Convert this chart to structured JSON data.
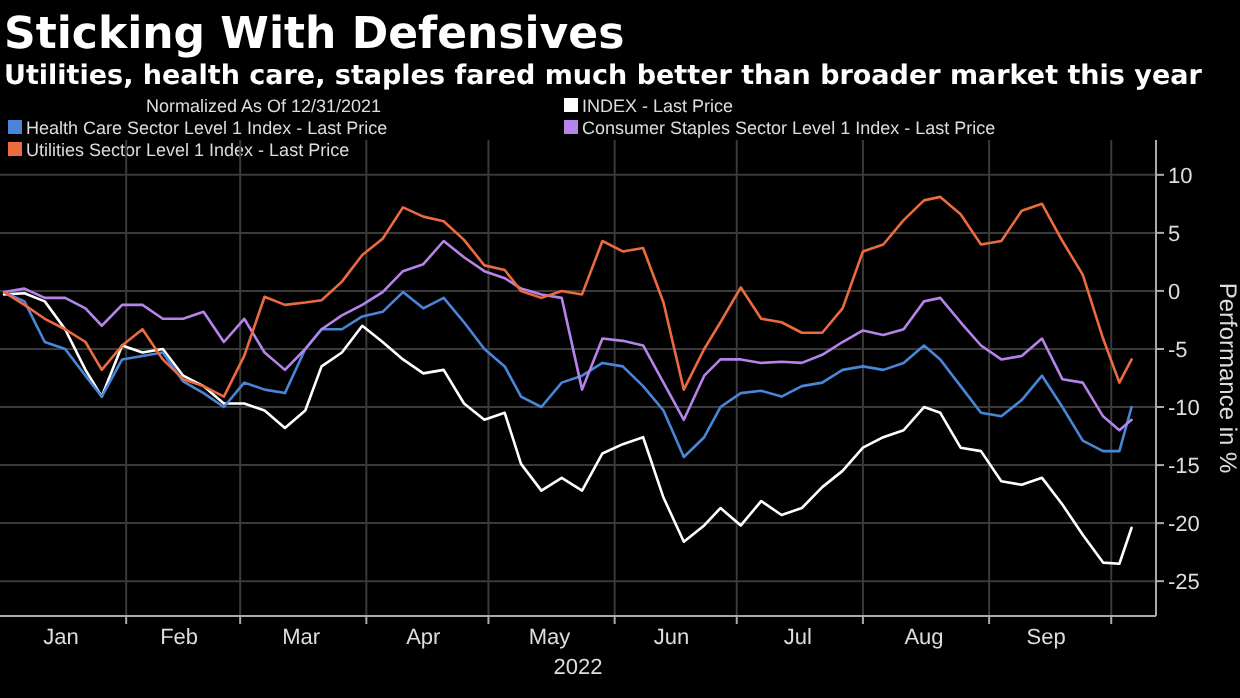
{
  "chart_data": {
    "type": "line",
    "title": "Sticking With Defensives",
    "subtitle": "Utilities, health care, staples fared much better than broader market this year",
    "legend_title": "Normalized As Of 12/31/2021",
    "xlabel": "2022",
    "ylabel": "Performance in %",
    "x": [
      "2022-01-02",
      "2022-01-07",
      "2022-01-12",
      "2022-01-17",
      "2022-01-22",
      "2022-01-26",
      "2022-01-31",
      "2022-02-05",
      "2022-02-10",
      "2022-02-15",
      "2022-02-20",
      "2022-02-25",
      "2022-03-02",
      "2022-03-07",
      "2022-03-12",
      "2022-03-17",
      "2022-03-21",
      "2022-03-26",
      "2022-03-31",
      "2022-04-05",
      "2022-04-10",
      "2022-04-15",
      "2022-04-20",
      "2022-04-25",
      "2022-04-30",
      "2022-05-05",
      "2022-05-09",
      "2022-05-14",
      "2022-05-19",
      "2022-05-24",
      "2022-05-29",
      "2022-06-03",
      "2022-06-08",
      "2022-06-13",
      "2022-06-18",
      "2022-06-23",
      "2022-06-27",
      "2022-07-02",
      "2022-07-07",
      "2022-07-12",
      "2022-07-17",
      "2022-07-22",
      "2022-07-27",
      "2022-08-01",
      "2022-08-06",
      "2022-08-11",
      "2022-08-16",
      "2022-08-20",
      "2022-08-25",
      "2022-08-30",
      "2022-09-04",
      "2022-09-09",
      "2022-09-14",
      "2022-09-19",
      "2022-09-24",
      "2022-09-29",
      "2022-10-03",
      "2022-10-06"
    ],
    "series": [
      {
        "name": "INDEX - Last Price",
        "color": "#ffffff",
        "values": [
          -0.3,
          -0.2,
          -0.9,
          -3.3,
          -6.8,
          -9.1,
          -4.7,
          -5.3,
          -5.0,
          -7.3,
          -8.2,
          -9.7,
          -9.7,
          -10.3,
          -11.8,
          -10.3,
          -6.5,
          -5.3,
          -3.0,
          -4.4,
          -5.9,
          -7.1,
          -6.8,
          -9.7,
          -11.1,
          -10.5,
          -14.9,
          -17.2,
          -16.1,
          -17.2,
          -14.0,
          -13.2,
          -12.6,
          -17.8,
          -21.6,
          -20.2,
          -18.7,
          -20.2,
          -18.1,
          -19.3,
          -18.7,
          -16.9,
          -15.5,
          -13.5,
          -12.6,
          -12.0,
          -10.0,
          -10.5,
          -13.5,
          -13.8,
          -16.4,
          -16.7,
          -16.1,
          -18.4,
          -21.0,
          -23.4,
          -23.5,
          -20.4
        ]
      },
      {
        "name": "Health Care Sector Level 1 Index - Last Price",
        "color": "#4a86d8",
        "values": [
          -0.1,
          -0.9,
          -4.4,
          -5.0,
          -7.3,
          -9.1,
          -5.9,
          -5.6,
          -5.3,
          -7.8,
          -8.8,
          -10.0,
          -7.9,
          -8.5,
          -8.8,
          -5.0,
          -3.3,
          -3.3,
          -2.2,
          -1.8,
          -0.1,
          -1.5,
          -0.6,
          -2.7,
          -5.0,
          -6.5,
          -9.1,
          -10.0,
          -7.9,
          -7.3,
          -6.2,
          -6.5,
          -8.2,
          -10.3,
          -14.3,
          -12.6,
          -10.0,
          -8.8,
          -8.6,
          -9.1,
          -8.2,
          -7.9,
          -6.8,
          -6.5,
          -6.8,
          -6.2,
          -4.7,
          -5.9,
          -8.2,
          -10.5,
          -10.8,
          -9.4,
          -7.3,
          -10.0,
          -12.9,
          -13.8,
          -13.8,
          -10.0
        ]
      },
      {
        "name": "Consumer Staples Sector Level 1 Index - Last Price",
        "color": "#b584ea",
        "values": [
          -0.1,
          0.2,
          -0.6,
          -0.6,
          -1.5,
          -3.0,
          -1.2,
          -1.2,
          -2.4,
          -2.4,
          -1.8,
          -4.4,
          -2.4,
          -5.3,
          -6.8,
          -5.0,
          -3.3,
          -2.1,
          -1.2,
          -0.1,
          1.7,
          2.3,
          4.3,
          2.9,
          1.7,
          1.1,
          0.2,
          -0.3,
          -0.6,
          -8.5,
          -4.1,
          -4.3,
          -4.7,
          -7.9,
          -11.1,
          -7.3,
          -5.9,
          -5.9,
          -6.2,
          -6.1,
          -6.2,
          -5.5,
          -4.4,
          -3.4,
          -3.8,
          -3.3,
          -0.9,
          -0.6,
          -2.7,
          -4.7,
          -5.9,
          -5.6,
          -4.1,
          -7.6,
          -7.9,
          -10.8,
          -12.0,
          -11.1
        ]
      },
      {
        "name": "Utilities Sector Level 1 Index - Last Price",
        "color": "#ec6a3f",
        "values": [
          -0.1,
          -1.2,
          -2.4,
          -3.3,
          -4.4,
          -6.8,
          -4.7,
          -3.3,
          -5.9,
          -7.6,
          -8.2,
          -9.1,
          -5.6,
          -0.5,
          -1.2,
          -1.0,
          -0.8,
          0.8,
          3.1,
          4.5,
          7.2,
          6.4,
          6.0,
          4.4,
          2.2,
          1.8,
          0.0,
          -0.6,
          0.0,
          -0.3,
          4.3,
          3.4,
          3.7,
          -1.0,
          -8.5,
          -5.0,
          -2.7,
          0.3,
          -2.4,
          -2.7,
          -3.6,
          -3.6,
          -1.5,
          3.4,
          4.0,
          6.1,
          7.8,
          8.1,
          6.6,
          4.0,
          4.3,
          6.9,
          7.5,
          4.3,
          1.4,
          -4.1,
          -7.9,
          -5.9
        ]
      }
    ],
    "xlim": [
      "2022-01-01",
      "2022-10-12"
    ],
    "xticks": [
      {
        "value": "2022-01-16",
        "label": "Jan"
      },
      {
        "value": "2022-02-01",
        "label": null
      },
      {
        "value": "2022-02-14",
        "label": "Feb"
      },
      {
        "value": "2022-03-01",
        "label": null
      },
      {
        "value": "2022-03-16",
        "label": "Mar"
      },
      {
        "value": "2022-04-01",
        "label": null
      },
      {
        "value": "2022-04-15",
        "label": "Apr"
      },
      {
        "value": "2022-05-01",
        "label": null
      },
      {
        "value": "2022-05-16",
        "label": "May"
      },
      {
        "value": "2022-06-01",
        "label": null
      },
      {
        "value": "2022-06-15",
        "label": "Jun"
      },
      {
        "value": "2022-07-01",
        "label": null
      },
      {
        "value": "2022-07-16",
        "label": "Jul"
      },
      {
        "value": "2022-08-01",
        "label": null
      },
      {
        "value": "2022-08-16",
        "label": "Aug"
      },
      {
        "value": "2022-09-01",
        "label": null
      },
      {
        "value": "2022-09-15",
        "label": "Sep"
      },
      {
        "value": "2022-10-01",
        "label": null
      }
    ],
    "ylim": [
      -28,
      13
    ],
    "yticks": [
      10,
      5,
      0,
      -5,
      -10,
      -15,
      -20,
      -25
    ],
    "grid": true,
    "legend": "top",
    "marker": "none",
    "line_style": "solid"
  }
}
